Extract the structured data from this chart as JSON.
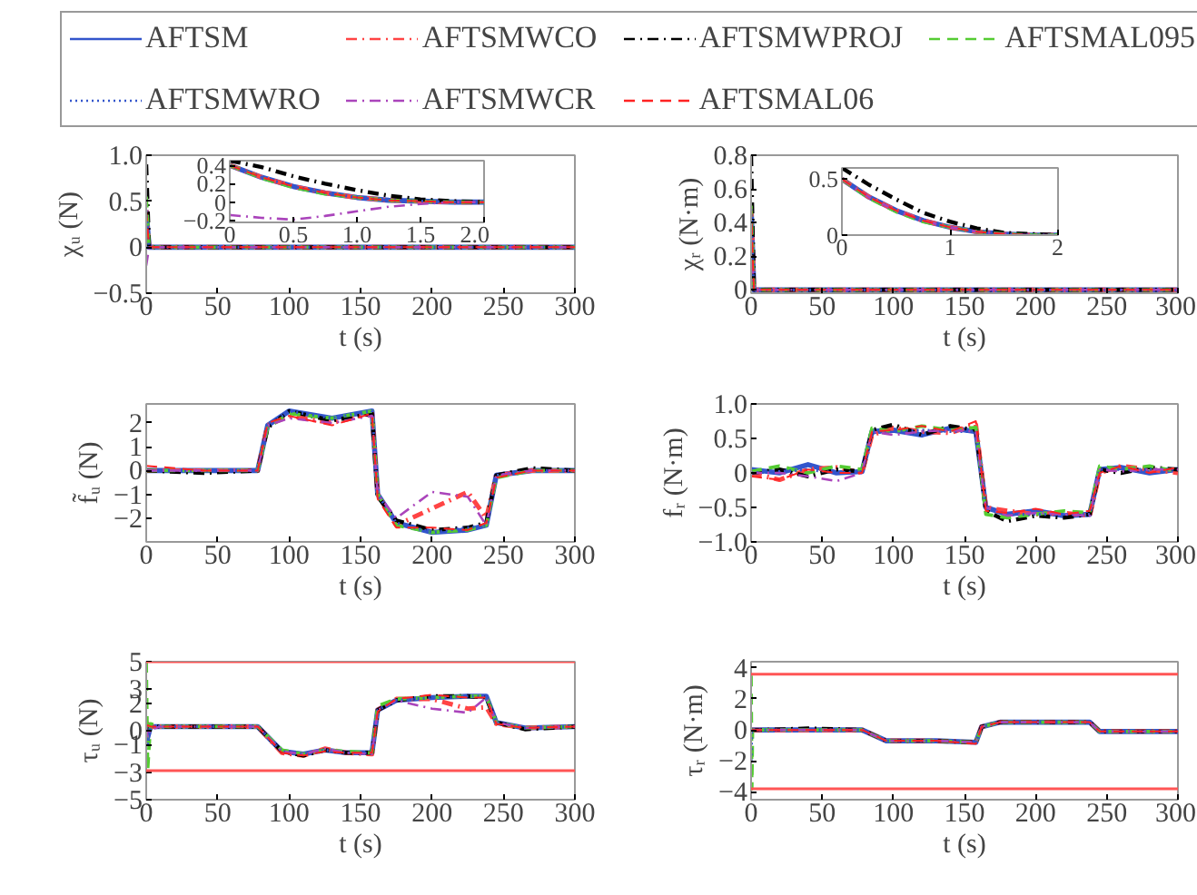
{
  "chart_data": [
    {
      "type": "line",
      "ylabel": "χᵤ (N)",
      "xlabel": "t (s)",
      "legend": "top",
      "xlim": [
        0,
        300
      ],
      "xticks": [
        0,
        50,
        100,
        150,
        200,
        250,
        300
      ],
      "ylim": [
        -0.5,
        1.0
      ],
      "yticks": [
        {
          "value": -0.5,
          "label": "−0.5"
        },
        0,
        0.5,
        {
          "value": 1,
          "label": "1.0"
        }
      ],
      "x": [
        0,
        2,
        300
      ],
      "series": [
        {
          "name": "AFTSM",
          "color": "#3355cc",
          "line_style": "solid",
          "values": [
            0.4,
            0,
            0
          ]
        },
        {
          "name": "AFTSMWCO",
          "color": "#ff4444",
          "line_style": "dashdot",
          "values": [
            0.4,
            0,
            0
          ]
        },
        {
          "name": "AFTSMWPROJ",
          "color": "#000000",
          "line_style": "dashdot",
          "values": [
            0.9,
            0,
            0
          ]
        },
        {
          "name": "AFTSMAL095",
          "color": "#55cc33",
          "line_style": "dashed",
          "values": [
            0.55,
            0,
            0
          ]
        },
        {
          "name": "AFTSMWRO",
          "color": "#3355cc",
          "line_style": "dotted",
          "values": [
            0.4,
            0,
            0
          ]
        },
        {
          "name": "AFTSMWCR",
          "color": "#aa44bb",
          "line_style": "dashdot",
          "values": [
            -0.2,
            0,
            0
          ]
        },
        {
          "name": "AFTSMAL06",
          "color": "#ff2222",
          "line_style": "dashed",
          "values": [
            0.4,
            0,
            0
          ]
        }
      ]
    },
    {
      "type": "line",
      "ylabel": "χᵣ (N·m)",
      "xlabel": "t (s)",
      "xlim": [
        0,
        300
      ],
      "xticks": [
        0,
        50,
        100,
        150,
        200,
        250,
        300
      ],
      "ylim": [
        -0.02,
        0.8
      ],
      "yticks": [
        0,
        0.2,
        0.4,
        0.6,
        0.8
      ],
      "x": [
        0,
        2,
        300
      ],
      "series": [
        {
          "color": "#3355cc",
          "line_style": "solid",
          "values": [
            0.5,
            0,
            0
          ]
        },
        {
          "color": "#ff4444",
          "line_style": "dashdot",
          "values": [
            0.5,
            0,
            0
          ]
        },
        {
          "color": "#000000",
          "line_style": "dashdot",
          "values": [
            0.8,
            0,
            0
          ]
        },
        {
          "color": "#55cc33",
          "line_style": "dashed",
          "values": [
            0.5,
            0,
            0
          ]
        },
        {
          "color": "#3355cc",
          "line_style": "dotted",
          "values": [
            0.48,
            0,
            0
          ]
        },
        {
          "color": "#aa44bb",
          "line_style": "dashdot",
          "values": [
            0.3,
            0,
            0
          ]
        },
        {
          "color": "#ff2222",
          "line_style": "dashed",
          "values": [
            0.5,
            0,
            0
          ]
        }
      ]
    },
    {
      "type": "line",
      "ylabel": "f̃ᵤ (N)",
      "xlabel": "t (s)",
      "xlim": [
        0,
        300
      ],
      "xticks": [
        0,
        50,
        100,
        150,
        200,
        250,
        300
      ],
      "ylim": [
        -3,
        2.8
      ],
      "yticks": [
        {
          "value": -2,
          "label": "−2"
        },
        {
          "value": -1,
          "label": "−1"
        },
        0,
        1,
        2
      ],
      "x": [
        0,
        40,
        78,
        85,
        100,
        130,
        158,
        162,
        175,
        200,
        225,
        238,
        245,
        270,
        300
      ],
      "series": [
        {
          "color": "#3355cc",
          "line_style": "solid",
          "values": [
            0,
            0,
            0,
            1.9,
            2.5,
            2.2,
            2.5,
            -1.0,
            -2.2,
            -2.6,
            -2.5,
            -2.3,
            -0.2,
            0,
            0
          ]
        },
        {
          "color": "#ff4444",
          "line_style": "dashdot",
          "values": [
            0,
            0,
            0,
            1.9,
            2.3,
            2.0,
            2.4,
            -1.0,
            -2.3,
            -1.6,
            -0.9,
            -2.0,
            -0.2,
            0,
            0
          ]
        },
        {
          "color": "#000000",
          "line_style": "dashdot",
          "values": [
            0,
            -0.1,
            0,
            1.8,
            2.5,
            2.1,
            2.4,
            -1.1,
            -2.1,
            -2.5,
            -2.4,
            -2.2,
            -0.2,
            0.1,
            0
          ]
        },
        {
          "color": "#55cc33",
          "line_style": "dashed",
          "values": [
            0,
            0,
            0,
            1.8,
            2.4,
            2.2,
            2.5,
            -1.0,
            -2.3,
            -2.6,
            -2.5,
            -2.3,
            -0.3,
            0,
            0
          ]
        },
        {
          "color": "#3355cc",
          "line_style": "dotted",
          "values": [
            0,
            0,
            0,
            1.9,
            2.5,
            2.2,
            2.5,
            -1.0,
            -2.2,
            -2.6,
            -2.4,
            -2.3,
            -0.2,
            0,
            0
          ]
        },
        {
          "color": "#aa44bb",
          "line_style": "dashdot",
          "values": [
            0,
            0,
            0,
            1.9,
            2.2,
            2.0,
            2.3,
            -1.0,
            -2.0,
            -0.9,
            -1.1,
            -2.3,
            -0.2,
            0,
            0
          ]
        },
        {
          "color": "#ff2222",
          "line_style": "dashed",
          "values": [
            0.2,
            0,
            0,
            2.0,
            2.3,
            1.9,
            2.4,
            -1.2,
            -2.4,
            -2.4,
            -2.5,
            -2.2,
            -0.3,
            0,
            0
          ]
        }
      ]
    },
    {
      "type": "line",
      "ylabel": "fᵣ (N·m)",
      "xlabel": "t (s)",
      "xlim": [
        0,
        300
      ],
      "xticks": [
        0,
        50,
        100,
        150,
        200,
        250,
        300
      ],
      "ylim": [
        -1,
        1
      ],
      "yticks": [
        {
          "value": -1,
          "label": "−1.0"
        },
        {
          "value": -0.5,
          "label": "−0.5"
        },
        0,
        0.5,
        {
          "value": 1,
          "label": "1.0"
        }
      ],
      "x": [
        0,
        20,
        40,
        60,
        78,
        85,
        100,
        120,
        140,
        158,
        165,
        180,
        200,
        220,
        238,
        245,
        260,
        280,
        300
      ],
      "series": [
        {
          "color": "#3355cc",
          "line_style": "solid",
          "values": [
            0.05,
            0,
            0.12,
            0,
            0.02,
            0.6,
            0.62,
            0.55,
            0.65,
            0.6,
            -0.5,
            -0.6,
            -0.55,
            -0.62,
            -0.6,
            0.05,
            0.08,
            0,
            0.05
          ]
        },
        {
          "color": "#ff4444",
          "line_style": "dashdot",
          "values": [
            0,
            -0.1,
            0.05,
            0.08,
            0,
            0.55,
            0.65,
            0.6,
            0.58,
            0.7,
            -0.5,
            -0.55,
            -0.6,
            -0.58,
            -0.62,
            0,
            0.1,
            0.05,
            0
          ]
        },
        {
          "color": "#000000",
          "line_style": "dashdot",
          "values": [
            0,
            0.05,
            -0.05,
            0.05,
            0.02,
            0.62,
            0.7,
            0.55,
            0.68,
            0.62,
            -0.55,
            -0.7,
            -0.62,
            -0.65,
            -0.6,
            0.05,
            0,
            0.08,
            0.05
          ]
        },
        {
          "color": "#55cc33",
          "line_style": "dashed",
          "values": [
            0.02,
            0.1,
            0,
            0.1,
            0.05,
            0.65,
            0.6,
            0.68,
            0.62,
            0.66,
            -0.6,
            -0.65,
            -0.6,
            -0.55,
            -0.58,
            0.1,
            0.05,
            0.1,
            0.02
          ]
        },
        {
          "color": "#3355cc",
          "line_style": "dotted",
          "values": [
            0,
            0.02,
            0.05,
            0,
            0.02,
            0.58,
            0.6,
            0.62,
            0.6,
            0.6,
            -0.52,
            -0.6,
            -0.6,
            -0.6,
            -0.6,
            0.05,
            0.05,
            0.05,
            0.05
          ]
        },
        {
          "color": "#aa44bb",
          "line_style": "dashdot",
          "values": [
            0,
            0,
            -0.05,
            -0.12,
            0,
            0.6,
            0.55,
            0.6,
            0.62,
            0.6,
            -0.5,
            -0.62,
            -0.58,
            -0.6,
            -0.62,
            0.05,
            0.02,
            0.05,
            0.05
          ]
        },
        {
          "color": "#ff2222",
          "line_style": "dashed",
          "values": [
            -0.05,
            -0.1,
            0.05,
            0,
            0,
            0.6,
            0.62,
            0.68,
            0.6,
            0.75,
            -0.55,
            -0.58,
            -0.52,
            -0.6,
            -0.55,
            0,
            0.1,
            0,
            0.08
          ]
        }
      ]
    },
    {
      "type": "line",
      "ylabel": "τᵤ (N)",
      "xlabel": "t (s)",
      "xlim": [
        0,
        300
      ],
      "xticks": [
        0,
        50,
        100,
        150,
        200,
        250,
        300
      ],
      "ylim": [
        -5,
        5
      ],
      "yticks": [
        {
          "value": -5,
          "label": "−5"
        },
        {
          "value": -3,
          "label": "−3"
        },
        {
          "value": -1,
          "label": "−1"
        },
        0,
        2,
        3,
        5
      ],
      "x": [
        0,
        1,
        3,
        10,
        78,
        95,
        110,
        125,
        140,
        158,
        162,
        175,
        200,
        225,
        238,
        245,
        265,
        300
      ],
      "ref_lines": [
        {
          "axis": "y",
          "value": 5,
          "color": "#ff5555"
        },
        {
          "axis": "y",
          "value": -2.9,
          "color": "#ff5555"
        }
      ],
      "series": [
        {
          "color": "#3355cc",
          "line_style": "solid",
          "values": [
            0.3,
            -0.5,
            0.3,
            0.3,
            0.3,
            -1.5,
            -1.7,
            -1.4,
            -1.6,
            -1.6,
            1.5,
            2.2,
            2.4,
            2.5,
            2.5,
            0.6,
            0.2,
            0.3
          ]
        },
        {
          "color": "#ff4444",
          "line_style": "dashdot",
          "values": [
            0.3,
            0.5,
            0.3,
            0.3,
            0.3,
            -1.6,
            -1.8,
            -1.3,
            -1.6,
            -1.7,
            1.5,
            2.3,
            2.3,
            1.6,
            1.7,
            0.5,
            0.2,
            0.3
          ]
        },
        {
          "color": "#000000",
          "line_style": "dashdot",
          "values": [
            0.5,
            0.1,
            0.3,
            0.3,
            0.3,
            -1.5,
            -1.8,
            -1.4,
            -1.6,
            -1.6,
            1.5,
            2.2,
            2.5,
            2.5,
            2.4,
            0.6,
            0.1,
            0.3
          ]
        },
        {
          "color": "#55cc33",
          "line_style": "dashed",
          "values": [
            5,
            -2.8,
            0.5,
            0.3,
            0.3,
            -1.4,
            -1.7,
            -1.4,
            -1.5,
            -1.6,
            1.8,
            2.3,
            2.4,
            2.5,
            2.5,
            0.6,
            0.2,
            0.3
          ]
        },
        {
          "color": "#3355cc",
          "line_style": "dotted",
          "values": [
            0.3,
            -1.0,
            0.3,
            0.3,
            0.3,
            -1.5,
            -1.7,
            -1.4,
            -1.6,
            -1.6,
            1.5,
            2.2,
            2.4,
            2.5,
            2.5,
            0.6,
            0.2,
            0.3
          ]
        },
        {
          "color": "#aa44bb",
          "line_style": "dashdot",
          "values": [
            0.3,
            -0.5,
            0.1,
            0.3,
            0.3,
            -1.5,
            -1.7,
            -1.3,
            -1.6,
            -1.7,
            1.5,
            2.2,
            1.6,
            1.3,
            2.4,
            0.6,
            0.2,
            0.3
          ]
        },
        {
          "color": "#ff2222",
          "line_style": "dashed",
          "values": [
            0.3,
            0.4,
            0.3,
            0.3,
            0.3,
            -1.6,
            -1.8,
            -1.5,
            -1.6,
            -1.6,
            1.4,
            2.3,
            2.6,
            2.4,
            2.4,
            0.5,
            0.2,
            0.3
          ]
        }
      ]
    },
    {
      "type": "line",
      "ylabel": "τᵣ (N·m)",
      "xlabel": "t (s)",
      "xlim": [
        0,
        300
      ],
      "xticks": [
        0,
        50,
        100,
        150,
        200,
        250,
        300
      ],
      "ylim": [
        -4.5,
        4.4
      ],
      "yticks": [
        {
          "value": -4,
          "label": "−4"
        },
        {
          "value": -2,
          "label": "−2"
        },
        0,
        2,
        4
      ],
      "x": [
        0,
        0.5,
        1,
        10,
        40,
        78,
        95,
        130,
        158,
        162,
        175,
        200,
        238,
        245,
        270,
        300
      ],
      "ref_lines": [
        {
          "axis": "y",
          "value": 3.6,
          "color": "#ff5555"
        },
        {
          "axis": "y",
          "value": -3.8,
          "color": "#ff5555"
        }
      ],
      "series": [
        {
          "color": "#3355cc",
          "line_style": "solid",
          "values": [
            0,
            0,
            0,
            0,
            0,
            0,
            -0.7,
            -0.7,
            -0.8,
            0.2,
            0.5,
            0.5,
            0.5,
            -0.1,
            -0.1,
            -0.1
          ]
        },
        {
          "color": "#ff4444",
          "line_style": "dashdot",
          "values": [
            0,
            0,
            0,
            0,
            0,
            0,
            -0.7,
            -0.7,
            -0.8,
            0.2,
            0.5,
            0.5,
            0.5,
            -0.1,
            -0.1,
            -0.1
          ]
        },
        {
          "color": "#000000",
          "line_style": "dashdot",
          "values": [
            0,
            0,
            0,
            0,
            0.1,
            0,
            -0.7,
            -0.7,
            -0.8,
            0.2,
            0.5,
            0.5,
            0.5,
            -0.1,
            -0.1,
            -0.1
          ]
        },
        {
          "color": "#55cc33",
          "line_style": "dashed",
          "values": [
            3.5,
            -3.8,
            0,
            0,
            0,
            0,
            -0.7,
            -0.7,
            -0.8,
            0.2,
            0.5,
            0.5,
            0.5,
            -0.1,
            -0.1,
            -0.1
          ]
        },
        {
          "color": "#3355cc",
          "line_style": "dotted",
          "values": [
            -2,
            0,
            0,
            0,
            0,
            0,
            -0.7,
            -0.7,
            -0.8,
            0.2,
            0.5,
            0.5,
            0.5,
            -0.1,
            -0.1,
            -0.1
          ]
        },
        {
          "color": "#aa44bb",
          "line_style": "dashdot",
          "values": [
            0,
            0,
            0,
            0,
            0,
            0,
            -0.7,
            -0.7,
            -0.8,
            0.2,
            0.5,
            0.5,
            0.5,
            -0.1,
            -0.1,
            -0.1
          ]
        },
        {
          "color": "#ff2222",
          "line_style": "dashed",
          "values": [
            0,
            0,
            0,
            0,
            0,
            0,
            -0.7,
            -0.7,
            -0.9,
            0.2,
            0.5,
            0.5,
            0.5,
            -0.1,
            -0.1,
            -0.1
          ]
        }
      ]
    },
    {
      "type": "line",
      "xlim": [
        0,
        2
      ],
      "xticks": [
        0,
        0.5,
        {
          "value": 1,
          "label": "1.0"
        },
        1.5,
        {
          "value": 2,
          "label": "2.0"
        }
      ],
      "ylim": [
        -0.22,
        0.45
      ],
      "yticks": [
        {
          "value": -0.2,
          "label": "−0.2"
        },
        0,
        0.2,
        0.4
      ],
      "x": [
        0,
        0.25,
        0.5,
        0.75,
        1,
        1.25,
        1.5,
        1.75,
        2
      ],
      "series": [
        {
          "color": "#3355cc",
          "line_style": "solid",
          "values": [
            0.4,
            0.27,
            0.17,
            0.1,
            0.05,
            0.02,
            0.01,
            0,
            0
          ]
        },
        {
          "color": "#ff4444",
          "line_style": "dashdot",
          "values": [
            0.4,
            0.27,
            0.17,
            0.1,
            0.05,
            0.02,
            0.01,
            0,
            0
          ]
        },
        {
          "color": "#000000",
          "line_style": "dashdot",
          "values": [
            0.45,
            0.38,
            0.28,
            0.2,
            0.13,
            0.07,
            0.03,
            0.01,
            0
          ]
        },
        {
          "color": "#55cc33",
          "line_style": "dashed",
          "values": [
            0.4,
            0.26,
            0.16,
            0.09,
            0.05,
            0.02,
            0.01,
            0,
            0
          ]
        },
        {
          "color": "#3355cc",
          "line_style": "dotted",
          "values": [
            0.4,
            0.27,
            0.17,
            0.1,
            0.05,
            0.02,
            0.01,
            0,
            0
          ]
        },
        {
          "color": "#aa44bb",
          "line_style": "dashdot",
          "values": [
            -0.14,
            -0.17,
            -0.19,
            -0.15,
            -0.1,
            -0.05,
            -0.02,
            0,
            0
          ]
        },
        {
          "color": "#ff2222",
          "line_style": "dashed",
          "values": [
            0.4,
            0.27,
            0.17,
            0.1,
            0.05,
            0.02,
            0.01,
            0,
            0
          ]
        }
      ]
    },
    {
      "type": "line",
      "xlim": [
        0,
        2
      ],
      "xticks": [
        0,
        1,
        2
      ],
      "ylim": [
        0,
        0.6
      ],
      "yticks": [
        0,
        0.5
      ],
      "x": [
        0,
        0.25,
        0.5,
        0.75,
        1,
        1.25,
        1.5,
        1.75,
        2
      ],
      "series": [
        {
          "color": "#3355cc",
          "line_style": "solid",
          "values": [
            0.5,
            0.34,
            0.22,
            0.13,
            0.07,
            0.03,
            0.01,
            0,
            0
          ]
        },
        {
          "color": "#ff4444",
          "line_style": "dashdot",
          "values": [
            0.5,
            0.34,
            0.22,
            0.13,
            0.07,
            0.03,
            0.01,
            0,
            0
          ]
        },
        {
          "color": "#000000",
          "line_style": "dashdot",
          "values": [
            0.6,
            0.45,
            0.32,
            0.2,
            0.12,
            0.06,
            0.02,
            0.01,
            0
          ]
        },
        {
          "color": "#55cc33",
          "line_style": "dashed",
          "values": [
            0.5,
            0.33,
            0.21,
            0.12,
            0.07,
            0.03,
            0.01,
            0,
            0
          ]
        },
        {
          "color": "#3355cc",
          "line_style": "dotted",
          "values": [
            0.5,
            0.34,
            0.22,
            0.13,
            0.07,
            0.03,
            0.01,
            0,
            0
          ]
        },
        {
          "color": "#aa44bb",
          "line_style": "dashdot",
          "values": [
            0.5,
            0.34,
            0.22,
            0.13,
            0.07,
            0.03,
            0.01,
            0,
            0
          ]
        },
        {
          "color": "#ff2222",
          "line_style": "dashed",
          "values": [
            0.5,
            0.34,
            0.22,
            0.13,
            0.07,
            0.03,
            0.01,
            0,
            0
          ]
        }
      ]
    }
  ]
}
